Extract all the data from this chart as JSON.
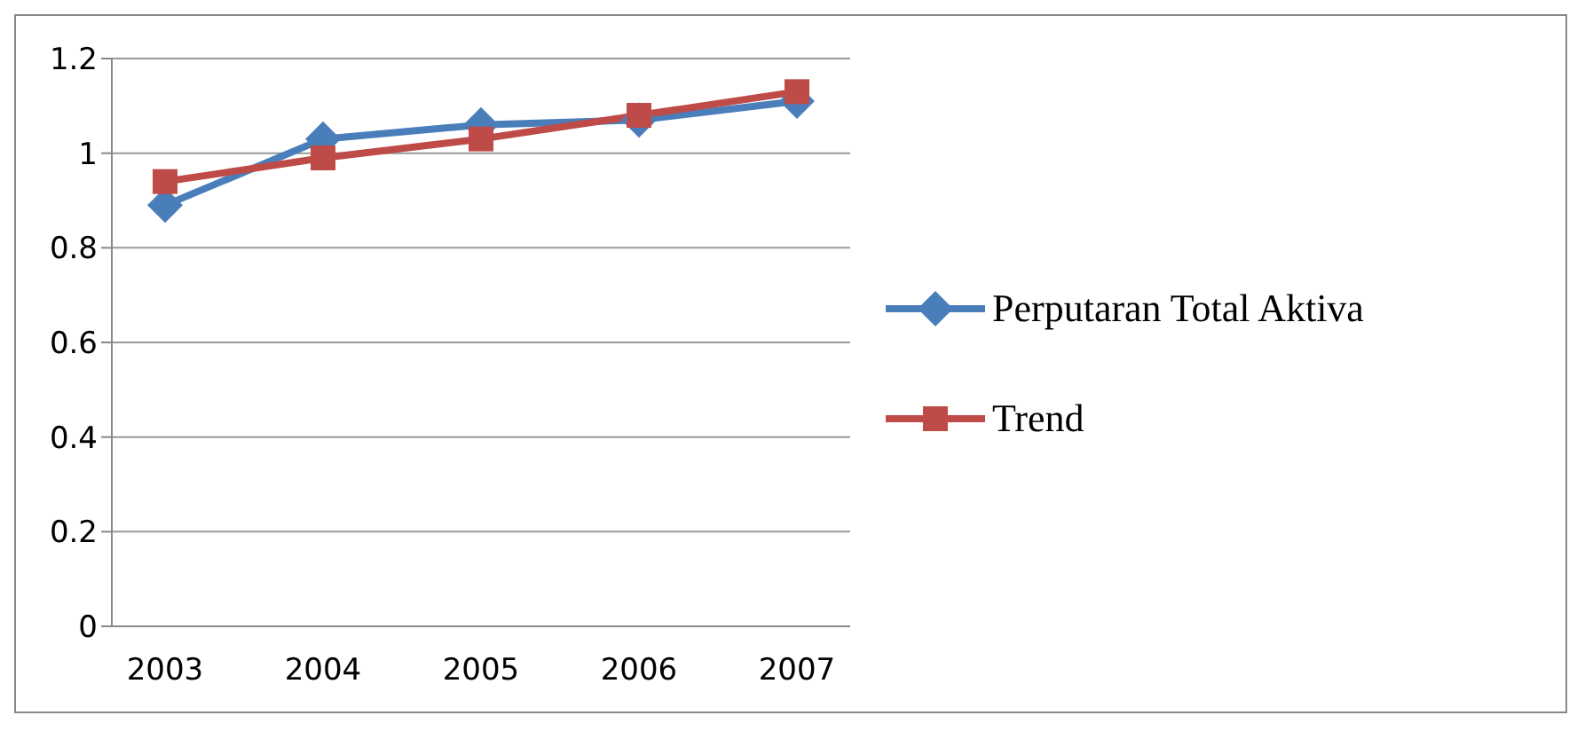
{
  "chart_data": {
    "type": "line",
    "categories": [
      "2003",
      "2004",
      "2005",
      "2006",
      "2007"
    ],
    "series": [
      {
        "name": "Perputaran Total Aktiva",
        "color": "#4a7ebb",
        "marker": "diamond",
        "values": [
          0.89,
          1.03,
          1.06,
          1.07,
          1.11
        ]
      },
      {
        "name": "Trend",
        "color": "#be4b48",
        "marker": "square",
        "values": [
          0.94,
          0.99,
          1.03,
          1.08,
          1.13
        ]
      }
    ],
    "ylim": [
      0,
      1.2
    ],
    "yticks": [
      0,
      0.2,
      0.4,
      0.6,
      0.8,
      1,
      1.2
    ],
    "grid": "y",
    "legend": "right"
  }
}
